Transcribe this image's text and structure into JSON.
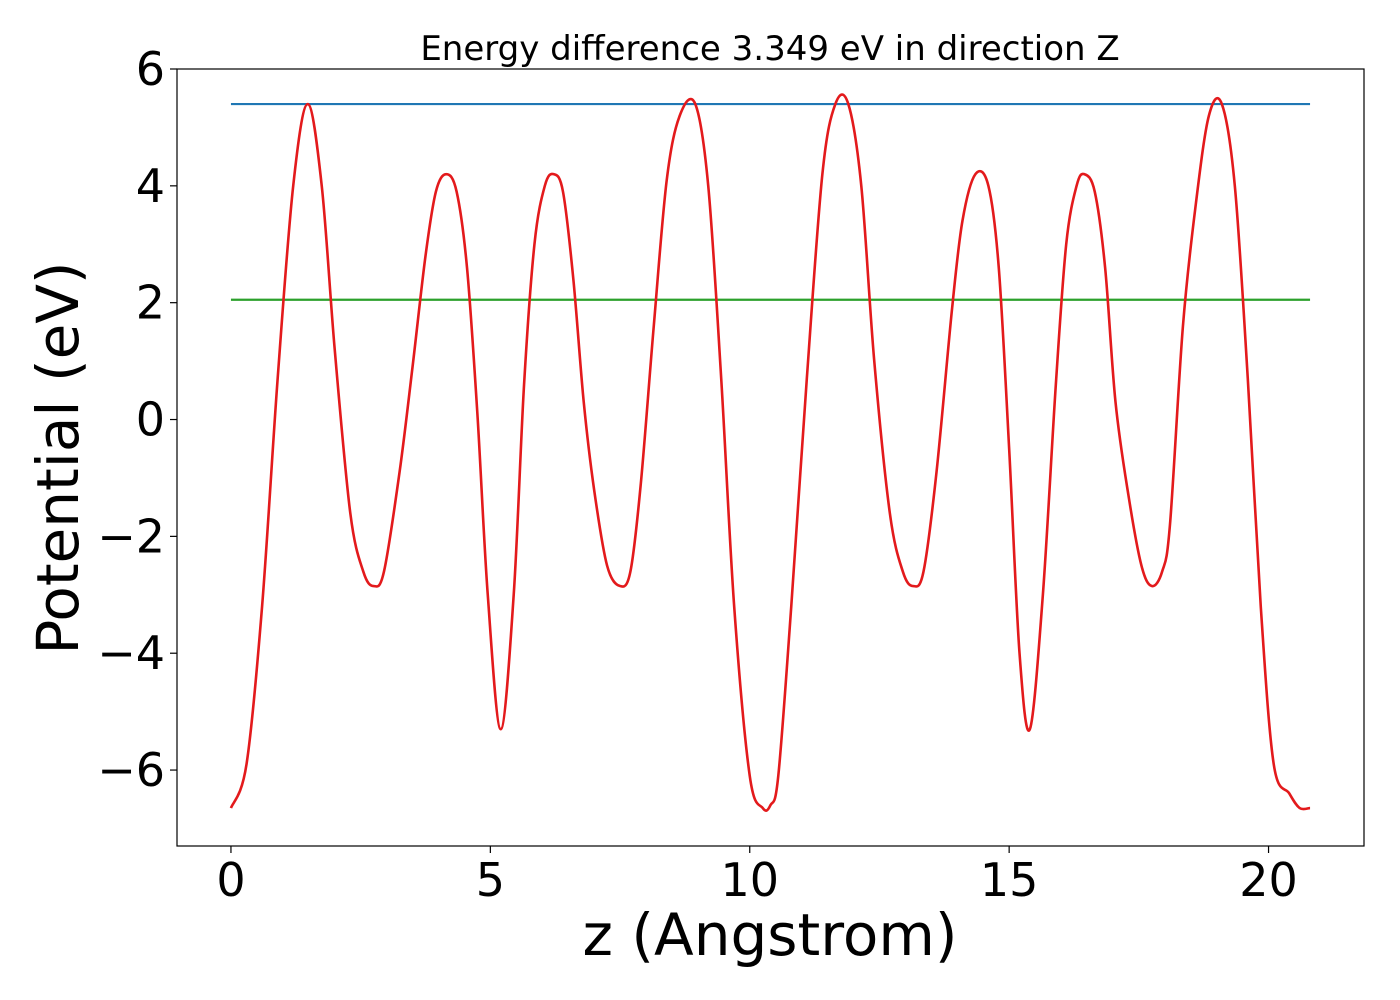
{
  "chart_data": {
    "type": "line",
    "title": "Energy difference 3.349 eV in direction Z",
    "xlabel": "z (Angstrom)",
    "ylabel": "Potential (eV)",
    "xlim": [
      -1.04,
      21.84
    ],
    "ylim": [
      -7.3,
      6.0
    ],
    "xticks": [
      0,
      5,
      10,
      15,
      20
    ],
    "xtick_labels": [
      "0",
      "5",
      "10",
      "15",
      "20"
    ],
    "yticks": [
      -6,
      -4,
      -2,
      0,
      2,
      4,
      6
    ],
    "ytick_labels": [
      "−6",
      "−4",
      "−2",
      "0",
      "2",
      "4",
      "6"
    ],
    "grid": false,
    "legend": "none",
    "series": [
      {
        "color": "#e31a1c",
        "style": "curve",
        "x": [
          0.0,
          0.3,
          0.6,
          0.9,
          1.2,
          1.48,
          1.75,
          2.0,
          2.3,
          2.55,
          2.75,
          2.95,
          3.25,
          3.5,
          3.75,
          3.95,
          4.15,
          4.35,
          4.55,
          4.75,
          4.95,
          5.2,
          5.45,
          5.65,
          5.85,
          6.05,
          6.22,
          6.4,
          6.6,
          6.8,
          7.0,
          7.25,
          7.5,
          7.7,
          7.9,
          8.15,
          8.4,
          8.65,
          8.95,
          9.2,
          9.45,
          9.7,
          10.0,
          10.25,
          10.4,
          10.55,
          10.8,
          11.1,
          11.4,
          11.65,
          11.9,
          12.15,
          12.4,
          12.7,
          12.95,
          13.15,
          13.35,
          13.6,
          13.9,
          14.1,
          14.35,
          14.6,
          14.8,
          15.0,
          15.2,
          15.4,
          15.65,
          15.9,
          16.1,
          16.3,
          16.45,
          16.65,
          16.85,
          17.05,
          17.3,
          17.55,
          17.75,
          17.95,
          18.1,
          18.35,
          18.6,
          18.85,
          19.1,
          19.35,
          19.6,
          19.85,
          20.1,
          20.4,
          20.6,
          20.8
        ],
        "y": [
          -6.65,
          -5.9,
          -3.2,
          0.7,
          4.0,
          5.4,
          4.0,
          1.2,
          -1.6,
          -2.6,
          -2.85,
          -2.6,
          -0.9,
          0.9,
          2.8,
          3.9,
          4.2,
          3.9,
          2.6,
          0.1,
          -3.0,
          -5.3,
          -3.0,
          0.6,
          3.0,
          4.0,
          4.2,
          3.9,
          2.4,
          0.3,
          -1.2,
          -2.5,
          -2.85,
          -2.6,
          -1.1,
          1.6,
          4.1,
          5.2,
          5.4,
          4.0,
          0.7,
          -3.2,
          -6.1,
          -6.65,
          -6.6,
          -6.1,
          -3.2,
          0.7,
          4.2,
          5.4,
          5.4,
          4.0,
          1.0,
          -1.6,
          -2.6,
          -2.85,
          -2.6,
          -0.9,
          1.9,
          3.4,
          4.2,
          4.0,
          2.6,
          -0.5,
          -4.0,
          -5.3,
          -3.0,
          0.6,
          3.0,
          4.0,
          4.2,
          3.9,
          2.6,
          0.3,
          -1.3,
          -2.5,
          -2.85,
          -2.6,
          -1.8,
          1.6,
          3.7,
          5.2,
          5.4,
          4.0,
          0.7,
          -3.2,
          -5.9,
          -6.4,
          -6.65,
          -6.65
        ]
      },
      {
        "color": "#1f77b4",
        "style": "line",
        "x": [
          0.0,
          20.8
        ],
        "y": [
          5.4,
          5.4
        ]
      },
      {
        "color": "#2ca02c",
        "style": "line",
        "x": [
          0.0,
          20.8
        ],
        "y": [
          2.05,
          2.05
        ]
      }
    ]
  }
}
